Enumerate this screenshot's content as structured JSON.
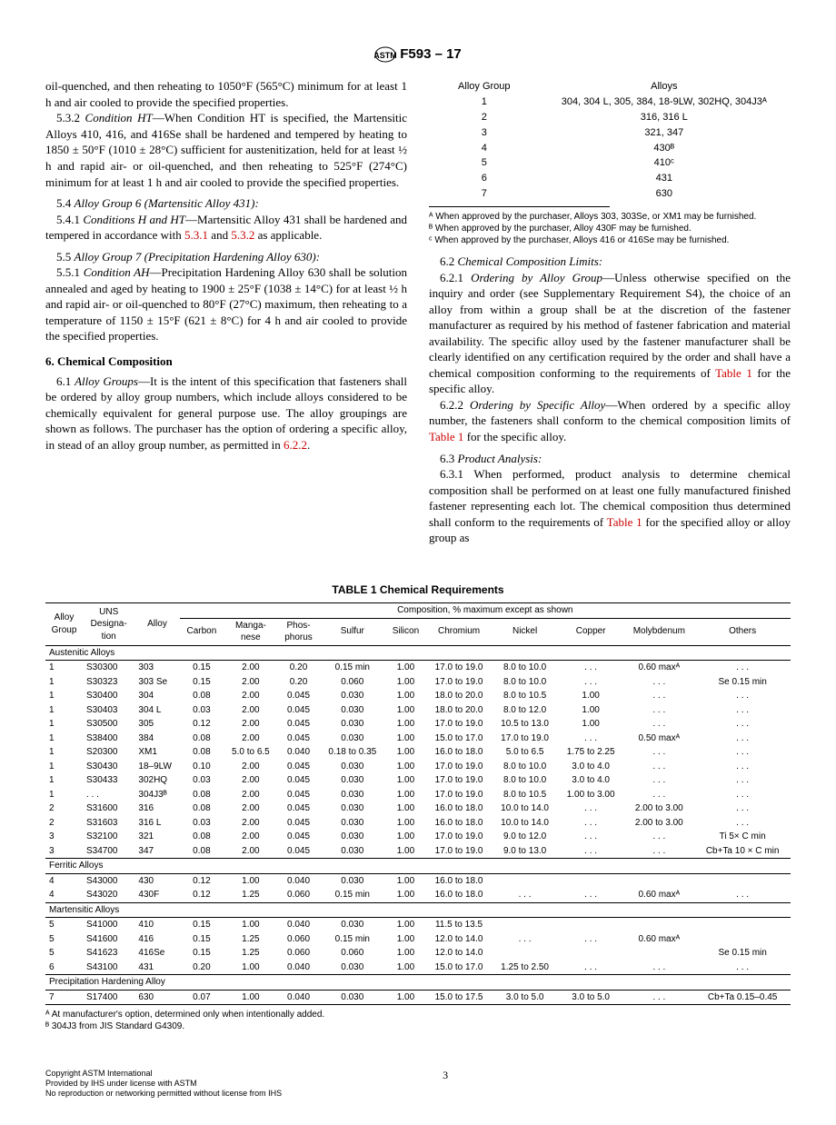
{
  "doc_number": "F593 – 17",
  "left_col": {
    "p1": "oil-quenched, and then reheating to 1050°F (565°C) minimum for at least 1 h and air cooled to provide the specified properties.",
    "p2_num": "5.3.2 ",
    "p2_title": "Condition HT",
    "p2": "—When Condition HT is specified, the Martensitic Alloys 410, 416, and 416Se shall be hardened and tempered by heating to 1850 ± 50°F (1010 ± 28°C) sufficient for austenitization, held for at least ½ h and rapid air- or oil-quenched, and then reheating to 525°F (274°C) minimum for at least 1 h and air cooled to provide the specified properties.",
    "p3_num": "5.4 ",
    "p3_title": "Alloy Group 6 (Martensitic Alloy 431):",
    "p4_num": "5.4.1 ",
    "p4_title": "Conditions H and HT",
    "p4_a": "—Martensitic Alloy 431 shall be hardened and tempered in accordance with ",
    "p4_r1": "5.3.1",
    "p4_mid": " and ",
    "p4_r2": "5.3.2",
    "p4_b": " as applicable.",
    "p5_num": "5.5 ",
    "p5_title": "Alloy Group 7 (Precipitation Hardening Alloy 630):",
    "p6_num": "5.5.1 ",
    "p6_title": "Condition AH",
    "p6": "—Precipitation Hardening Alloy 630 shall be solution annealed and aged by heating to 1900 ± 25°F (1038 ± 14°C) for at least ½ h and rapid air- or oil-quenched to 80°F (27°C) maximum, then reheating to a temperature of 1150 ± 15°F (621 ± 8°C) for 4 h and air cooled to provide the specified properties.",
    "sec6": "6.  Chemical Composition",
    "p7_num": "6.1 ",
    "p7_title": "Alloy Groups",
    "p7_a": "—It is the intent of this specification that fasteners shall be ordered by alloy group numbers, which include alloys considered to be chemically equivalent for general purpose use. The alloy groupings are shown as follows. The purchaser has the option of ordering a specific alloy, in stead of an alloy group number, as permitted in ",
    "p7_r": "6.2.2",
    "p7_b": "."
  },
  "alloy_group_table": {
    "headers": [
      "Alloy Group",
      "Alloys"
    ],
    "rows": [
      [
        "1",
        "304, 304 L, 305, 384, 18-9LW, 302HQ, 304J3ᴬ"
      ],
      [
        "2",
        "316, 316 L"
      ],
      [
        "3",
        "321, 347"
      ],
      [
        "4",
        "430ᴮ"
      ],
      [
        "5",
        "410ᶜ"
      ],
      [
        "6",
        "431"
      ],
      [
        "7",
        "630"
      ]
    ],
    "notes": [
      "ᴬ When approved by the purchaser, Alloys 303, 303Se, or XM1 may be furnished.",
      "ᴮ When approved by the purchaser, Alloy 430F may be furnished.",
      "ᶜ When approved by the purchaser, Alloys 416 or 416Se may be furnished."
    ]
  },
  "right_col": {
    "p1_num": "6.2 ",
    "p1_title": "Chemical Composition Limits:",
    "p2_num": "6.2.1 ",
    "p2_title": "Ordering by Alloy Group",
    "p2_a": "—Unless otherwise specified on the inquiry and order (see Supplementary Requirement S4), the choice of an alloy from within a group shall be at the discretion of the fastener manufacturer as required by his method of fastener fabrication and material availability. The specific alloy used by the fastener manufacturer shall be clearly identified on any certification required by the order and shall have a chemical composition conforming to the requirements of ",
    "p2_r": "Table 1",
    "p2_b": " for the specific alloy.",
    "p3_num": "6.2.2 ",
    "p3_title": "Ordering by Specific Alloy",
    "p3_a": "—When ordered by a specific alloy number, the fasteners shall conform to the chemical composition limits of ",
    "p3_r": "Table 1",
    "p3_b": " for the specific alloy.",
    "p4_num": "6.3 ",
    "p4_title": "Product Analysis:",
    "p5_num": "6.3.1 ",
    "p5_a": "When performed, product analysis to determine chemical composition shall be performed on at least one fully manufactured finished fastener representing each lot. The chemical composition thus determined shall conform to the requirements of ",
    "p5_r": "Table 1",
    "p5_b": " for the specified alloy or alloy group as"
  },
  "table1": {
    "title": "TABLE 1 Chemical Requirements",
    "headers_top": [
      "Alloy Group",
      "UNS Designa-tion",
      "Alloy",
      "Composition, % maximum except as shown"
    ],
    "headers": [
      "Carbon",
      "Manga-nese",
      "Phos-phorus",
      "Sulfur",
      "Silicon",
      "Chromium",
      "Nickel",
      "Copper",
      "Molybdenum",
      "Others"
    ],
    "sections": [
      {
        "name": "Austenitic Alloys",
        "rows": [
          [
            "1",
            "S30300",
            "303",
            "0.15",
            "2.00",
            "0.20",
            "0.15 min",
            "1.00",
            "17.0 to 19.0",
            "8.0 to 10.0",
            ". . .",
            "0.60 maxᴬ",
            ". . ."
          ],
          [
            "1",
            "S30323",
            "303 Se",
            "0.15",
            "2.00",
            "0.20",
            "0.060",
            "1.00",
            "17.0 to 19.0",
            "8.0 to 10.0",
            ". . .",
            ". . .",
            "Se 0.15 min"
          ],
          [
            "1",
            "S30400",
            "304",
            "0.08",
            "2.00",
            "0.045",
            "0.030",
            "1.00",
            "18.0 to 20.0",
            "8.0 to 10.5",
            "1.00",
            ". . .",
            ". . ."
          ],
          [
            "1",
            "S30403",
            "304 L",
            "0.03",
            "2.00",
            "0.045",
            "0.030",
            "1.00",
            "18.0 to 20.0",
            "8.0 to 12.0",
            "1.00",
            ". . .",
            ". . ."
          ],
          [
            "1",
            "S30500",
            "305",
            "0.12",
            "2.00",
            "0.045",
            "0.030",
            "1.00",
            "17.0 to 19.0",
            "10.5 to 13.0",
            "1.00",
            ". . .",
            ". . ."
          ],
          [
            "1",
            "S38400",
            "384",
            "0.08",
            "2.00",
            "0.045",
            "0.030",
            "1.00",
            "15.0 to 17.0",
            "17.0 to 19.0",
            ". . .",
            "0.50 maxᴬ",
            ". . ."
          ],
          [
            "1",
            "S20300",
            "XM1",
            "0.08",
            "5.0 to 6.5",
            "0.040",
            "0.18 to 0.35",
            "1.00",
            "16.0 to 18.0",
            "5.0 to  6.5",
            "1.75 to 2.25",
            ". . .",
            ". . ."
          ],
          [
            "1",
            "S30430",
            "18–9LW",
            "0.10",
            "2.00",
            "0.045",
            "0.030",
            "1.00",
            "17.0 to 19.0",
            "8.0 to 10.0",
            "3.0 to 4.0",
            ". . .",
            ". . ."
          ],
          [
            "1",
            "S30433",
            "302HQ",
            "0.03",
            "2.00",
            "0.045",
            "0.030",
            "1.00",
            "17.0 to 19.0",
            "8.0 to 10.0",
            "3.0 to 4.0",
            ". . .",
            ". . ."
          ],
          [
            "1",
            ". . .",
            "304J3ᴮ",
            "0.08",
            "2.00",
            "0.045",
            "0.030",
            "1.00",
            "17.0 to 19.0",
            "8.0 to 10.5",
            "1.00 to 3.00",
            ". . .",
            ". . ."
          ],
          [
            "2",
            "S31600",
            "316",
            "0.08",
            "2.00",
            "0.045",
            "0.030",
            "1.00",
            "16.0 to 18.0",
            "10.0 to 14.0",
            ". . .",
            "2.00 to 3.00",
            ". . ."
          ],
          [
            "2",
            "S31603",
            "316 L",
            "0.03",
            "2.00",
            "0.045",
            "0.030",
            "1.00",
            "16.0 to 18.0",
            "10.0 to 14.0",
            ". . .",
            "2.00 to 3.00",
            ". . ."
          ],
          [
            "3",
            "S32100",
            "321",
            "0.08",
            "2.00",
            "0.045",
            "0.030",
            "1.00",
            "17.0 to 19.0",
            "9.0 to 12.0",
            ". . .",
            ". . .",
            "Ti    5× C min"
          ],
          [
            "3",
            "S34700",
            "347",
            "0.08",
            "2.00",
            "0.045",
            "0.030",
            "1.00",
            "17.0 to 19.0",
            "9.0 to 13.0",
            ". . .",
            ". . .",
            "Cb+Ta  10 × C min"
          ]
        ]
      },
      {
        "name": "Ferritic Alloys",
        "rows": [
          [
            "4",
            "S43000",
            "430",
            "0.12",
            "1.00",
            "0.040",
            "0.030",
            "1.00",
            "16.0 to 18.0",
            "",
            "",
            "",
            ""
          ],
          [
            "4",
            "S43020",
            "430F",
            "0.12",
            "1.25",
            "0.060",
            "0.15 min",
            "1.00",
            "16.0 to 18.0",
            ". . .",
            ". . .",
            "0.60 maxᴬ",
            ". . ."
          ]
        ]
      },
      {
        "name": "Martensitic Alloys",
        "rows": [
          [
            "5",
            "S41000",
            "410",
            "0.15",
            "1.00",
            "0.040",
            "0.030",
            "1.00",
            "11.5 to 13.5",
            "",
            "",
            "",
            ""
          ],
          [
            "5",
            "S41600",
            "416",
            "0.15",
            "1.25",
            "0.060",
            "0.15 min",
            "1.00",
            "12.0 to 14.0",
            ". . .",
            ". . .",
            "0.60 maxᴬ",
            ""
          ],
          [
            "5",
            "S41623",
            "416Se",
            "0.15",
            "1.25",
            "0.060",
            "0.060",
            "1.00",
            "12.0 to 14.0",
            "",
            "",
            "",
            "Se 0.15 min"
          ],
          [
            "6",
            "S43100",
            "431",
            "0.20",
            "1.00",
            "0.040",
            "0.030",
            "1.00",
            "15.0 to 17.0",
            "1.25 to 2.50",
            ". . .",
            ". . .",
            ". . ."
          ]
        ]
      },
      {
        "name": "Precipitation Hardening Alloy",
        "rows": [
          [
            "7",
            "S17400",
            "630",
            "0.07",
            "1.00",
            "0.040",
            "0.030",
            "1.00",
            "15.0 to 17.5",
            "3.0 to 5.0",
            "3.0 to 5.0",
            ". . .",
            "Cb+Ta   0.15–0.45"
          ]
        ]
      }
    ],
    "notes": [
      "ᴬ At manufacturer's option, determined only when intentionally added.",
      "ᴮ 304J3 from JIS Standard G4309."
    ]
  },
  "footer": {
    "left1": "Copyright ASTM International",
    "left2": "Provided by IHS under license with ASTM",
    "left3": "No reproduction or networking permitted without license from IHS",
    "page": "3"
  }
}
